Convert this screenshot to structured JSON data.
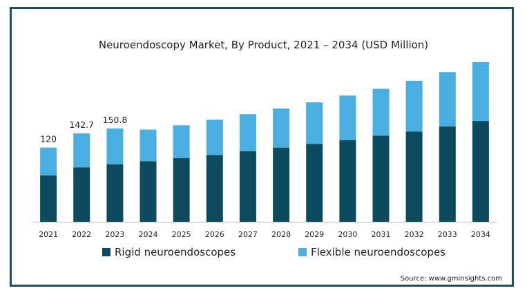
{
  "chart_data": {
    "type": "bar",
    "stacked": true,
    "title": "Neuroendoscopy Market, By Product, 2021 – 2034 (USD Million)",
    "categories": [
      "2021",
      "2022",
      "2023",
      "2024",
      "2025",
      "2026",
      "2027",
      "2028",
      "2029",
      "2030",
      "2031",
      "2032",
      "2033",
      "2034"
    ],
    "series": [
      {
        "name": "Rigid neuroendoscopes",
        "color": "#0b4a5f",
        "values": [
          75,
          88,
          93,
          98,
          103,
          108,
          114,
          120,
          126,
          132,
          139,
          146,
          154,
          163
        ]
      },
      {
        "name": "Flexible neuroendoscopes",
        "color": "#4aaee0",
        "values": [
          45,
          54.7,
          57.8,
          51,
          53,
          57,
          60,
          63,
          67,
          72,
          76,
          82,
          88,
          95
        ]
      }
    ],
    "data_labels": [
      {
        "category": "2021",
        "text": "120"
      },
      {
        "category": "2022",
        "text": "142.7"
      },
      {
        "category": "2023",
        "text": "150.8"
      }
    ],
    "ylim": [
      0,
      258
    ],
    "xlabel": "",
    "ylabel": "",
    "grid": false,
    "legend_position": "bottom"
  },
  "source": "Source: www.gminsights.com"
}
